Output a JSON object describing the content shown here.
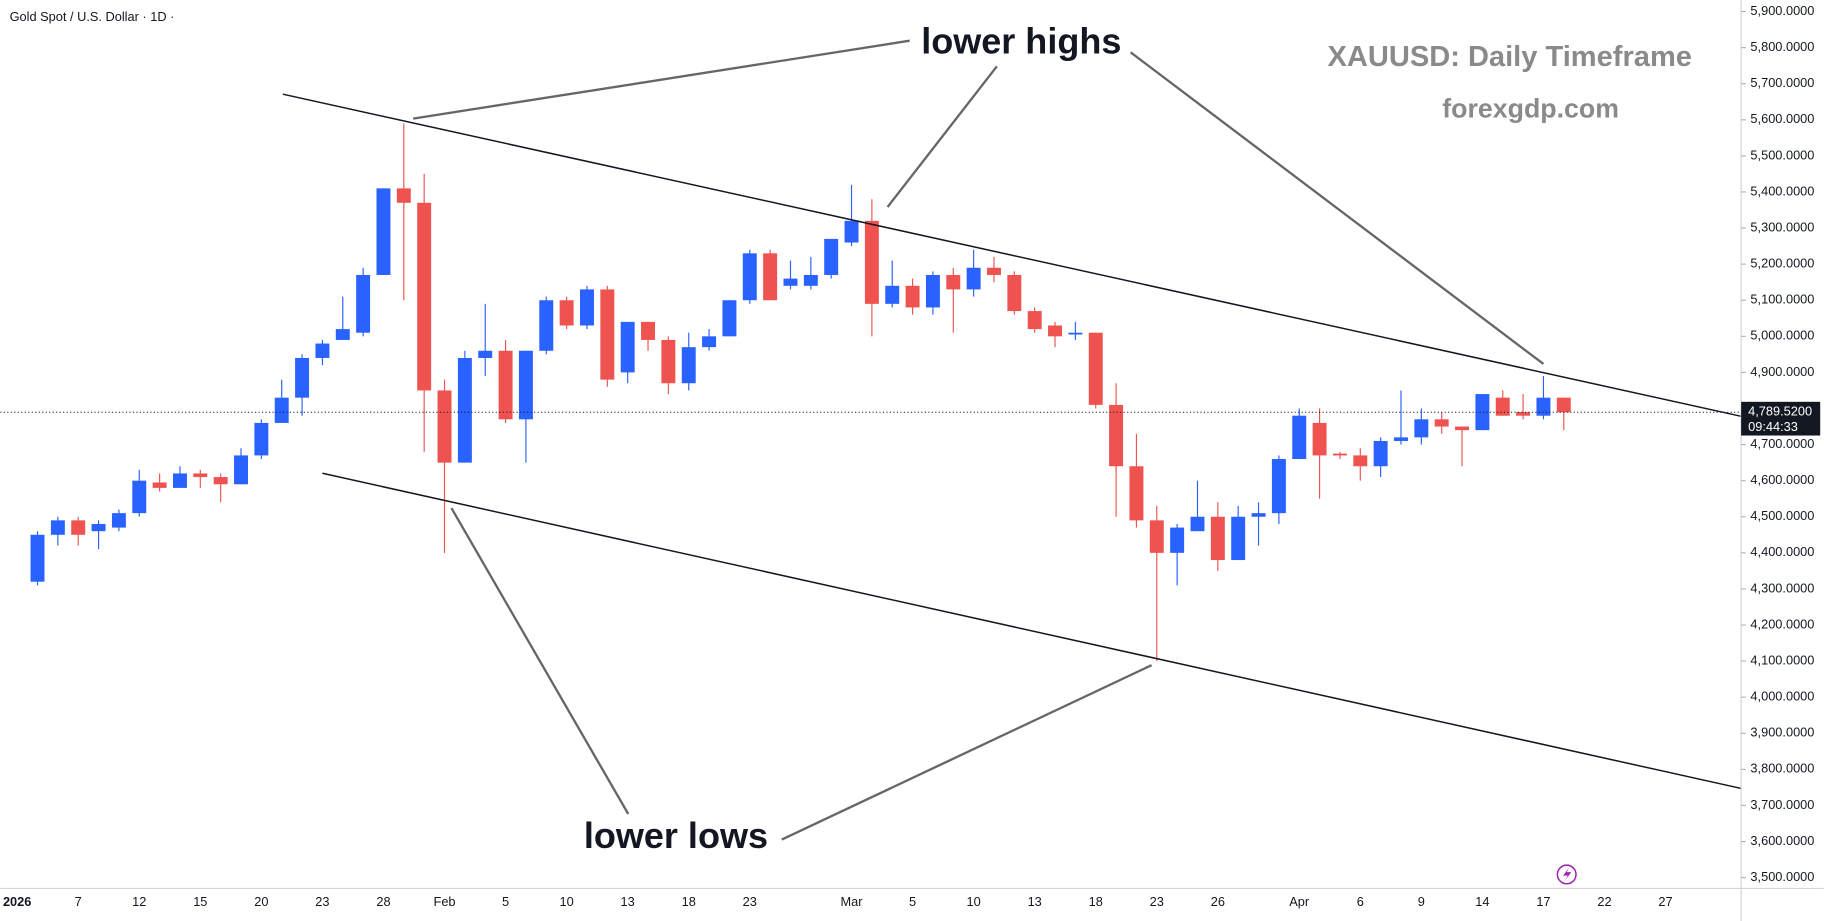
{
  "chart_data": {
    "type": "candlestick",
    "title": "Gold Spot / U.S. Dollar · 1D ·",
    "annotations": [
      "lower highs",
      "lower lows",
      "XAUUSD: Daily Timeframe",
      "forexgdp.com"
    ],
    "up_color": "#2962ff",
    "down_color": "#ef5350",
    "categories": [
      "2026",
      null,
      null,
      "7",
      null,
      null,
      "12",
      null,
      null,
      "15",
      null,
      null,
      "20",
      null,
      null,
      "23",
      null,
      null,
      "28",
      null,
      null,
      "Feb",
      null,
      null,
      "5",
      null,
      null,
      "10",
      null,
      null,
      "13",
      null,
      null,
      "18",
      null,
      null,
      "23",
      null,
      null,
      null,
      null,
      "Mar",
      null,
      null,
      "5",
      null,
      null,
      "10",
      null,
      null,
      "13",
      null,
      null,
      "18",
      null,
      null,
      "23",
      null,
      null,
      "26",
      null,
      null,
      null,
      "Apr",
      null,
      null,
      "6",
      null,
      null,
      "9",
      null,
      null,
      "14",
      null,
      null,
      "17",
      null,
      null,
      "22",
      null,
      null,
      "27"
    ],
    "open": [
      null,
      4320,
      4450,
      4490,
      4460,
      4470,
      4510,
      4595,
      4580,
      4620,
      4610,
      4590,
      4670,
      4760,
      4830,
      4940,
      4990,
      5010,
      5170,
      5410,
      5370,
      4850,
      4650,
      4940,
      4960,
      4770,
      4960,
      5100,
      5030,
      5130,
      4900,
      5040,
      4990,
      4870,
      4970,
      5000,
      5100,
      5230,
      5140,
      5140,
      5170,
      5260,
      5320,
      5090,
      5140,
      5080,
      5170,
      5130,
      5190,
      5170,
      5070,
      5030,
      5005,
      5010,
      4810,
      4640,
      4490,
      4400,
      4460,
      4500,
      4380,
      4500,
      4510,
      4660,
      4760,
      4675,
      4670,
      4640,
      4710,
      4720,
      4770,
      4750,
      4740,
      4830,
      4790,
      4780,
      4830,
      null,
      null,
      null,
      null,
      null
    ],
    "high": [
      null,
      4460,
      4500,
      4500,
      4490,
      4520,
      4630,
      4620,
      4640,
      4630,
      4620,
      4690,
      4770,
      4880,
      4950,
      4990,
      5110,
      5190,
      5410,
      5590,
      5450,
      4880,
      4960,
      5090,
      4990,
      4960,
      5110,
      5110,
      5140,
      5140,
      5040,
      5040,
      5000,
      5010,
      5020,
      5100,
      5240,
      5240,
      5210,
      5220,
      5270,
      5420,
      5380,
      5210,
      5160,
      5180,
      5190,
      5240,
      5220,
      5180,
      5080,
      5040,
      5040,
      5010,
      4870,
      4730,
      4530,
      4480,
      4600,
      4540,
      4530,
      4540,
      4670,
      4800,
      4800,
      4680,
      4690,
      4720,
      4850,
      4800,
      4790,
      4750,
      4840,
      4850,
      4840,
      4890,
      4830,
      null,
      null,
      null,
      null,
      null
    ],
    "low": [
      null,
      4310,
      4420,
      4420,
      4410,
      4460,
      4500,
      4570,
      4580,
      4580,
      4540,
      4590,
      4660,
      4760,
      4780,
      4920,
      4990,
      5000,
      5170,
      5100,
      4680,
      4400,
      4650,
      4890,
      4760,
      4650,
      4950,
      5020,
      5020,
      4860,
      4870,
      4960,
      4840,
      4850,
      4960,
      5000,
      5090,
      5100,
      5130,
      5130,
      5160,
      5250,
      5000,
      5080,
      5060,
      5060,
      5010,
      5110,
      5150,
      5060,
      5010,
      4970,
      4990,
      4800,
      4500,
      4470,
      4100,
      4310,
      4460,
      4350,
      4380,
      4420,
      4480,
      4660,
      4550,
      4660,
      4600,
      4610,
      4700,
      4700,
      4730,
      4640,
      4740,
      4780,
      4770,
      4770,
      4740,
      null,
      null,
      null,
      null,
      null
    ],
    "close": [
      null,
      4450,
      4490,
      4450,
      4480,
      4510,
      4600,
      4580,
      4620,
      4610,
      4590,
      4670,
      4760,
      4830,
      4940,
      4980,
      5020,
      5170,
      5410,
      5370,
      4850,
      4650,
      4940,
      4960,
      4770,
      4960,
      5100,
      5030,
      5130,
      4880,
      5040,
      4990,
      4870,
      4970,
      5000,
      5100,
      5230,
      5100,
      5160,
      5170,
      5270,
      5320,
      5090,
      5140,
      5080,
      5170,
      5130,
      5190,
      5170,
      5070,
      5020,
      5000,
      5010,
      4810,
      4640,
      4490,
      4400,
      4470,
      4500,
      4380,
      4500,
      4510,
      4660,
      4780,
      4670,
      4670,
      4640,
      4710,
      4720,
      4770,
      4750,
      4740,
      4840,
      4780,
      4780,
      4830,
      4789.52,
      null,
      null,
      null,
      null,
      null
    ],
    "last_price": {
      "value": 4789.52,
      "label": "4,789.5200"
    },
    "countdown": "09:44:33",
    "ylim": [
      3470,
      5932
    ],
    "yticks": [
      {
        "value": 3500,
        "label": "3,500.0000"
      },
      {
        "value": 3600,
        "label": "3,600.0000"
      },
      {
        "value": 3700,
        "label": "3,700.0000"
      },
      {
        "value": 3800,
        "label": "3,800.0000"
      },
      {
        "value": 3900,
        "label": "3,900.0000"
      },
      {
        "value": 4000,
        "label": "4,000.0000"
      },
      {
        "value": 4100,
        "label": "4,100.0000"
      },
      {
        "value": 4200,
        "label": "4,200.0000"
      },
      {
        "value": 4300,
        "label": "4,300.0000"
      },
      {
        "value": 4400,
        "label": "4,400.0000"
      },
      {
        "value": 4500,
        "label": "4,500.0000"
      },
      {
        "value": 4600,
        "label": "4,600.0000"
      },
      {
        "value": 4700,
        "label": "4,700.0000"
      },
      {
        "value": 4800,
        "label": "4,800.0000"
      },
      {
        "value": 4900,
        "label": "4,900.0000"
      },
      {
        "value": 5000,
        "label": "5,000.0000"
      },
      {
        "value": 5100,
        "label": "5,100.0000"
      },
      {
        "value": 5200,
        "label": "5,200.0000"
      },
      {
        "value": 5300,
        "label": "5,300.0000"
      },
      {
        "value": 5400,
        "label": "5,400.0000"
      },
      {
        "value": 5500,
        "label": "5,500.0000"
      },
      {
        "value": 5600,
        "label": "5,600.0000"
      },
      {
        "value": 5700,
        "label": "5,700.0000"
      },
      {
        "value": 5800,
        "label": "5,800.0000"
      },
      {
        "value": 5900,
        "label": "5,900.0000"
      }
    ]
  }
}
